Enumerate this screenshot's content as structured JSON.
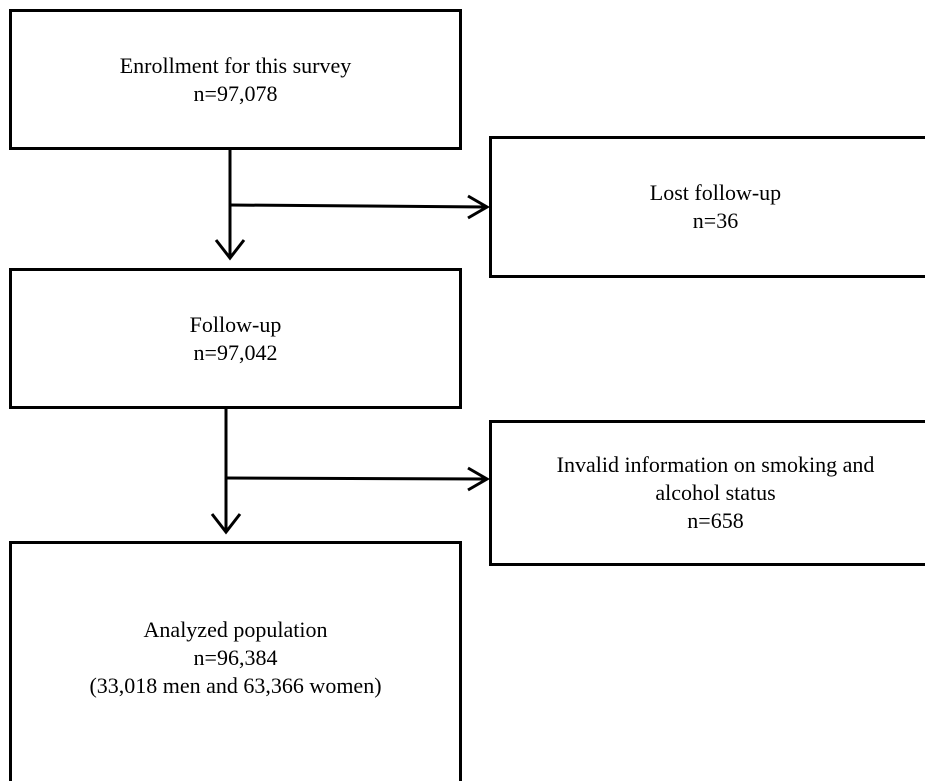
{
  "flowchart": {
    "enrollment": {
      "title": "Enrollment for this survey",
      "count": "n=97,078"
    },
    "lost_followup": {
      "title": "Lost follow-up",
      "count": "n=36"
    },
    "followup": {
      "title": "Follow-up",
      "count": "n=97,042"
    },
    "invalid": {
      "title_line1": "Invalid information on smoking and",
      "title_line2": "alcohol status",
      "count": "n=658"
    },
    "analyzed": {
      "title": "Analyzed population",
      "count": "n=96,384",
      "breakdown": "(33,018 men and 63,366 women)"
    }
  },
  "colors": {
    "stroke": "#000000",
    "background": "#ffffff"
  }
}
